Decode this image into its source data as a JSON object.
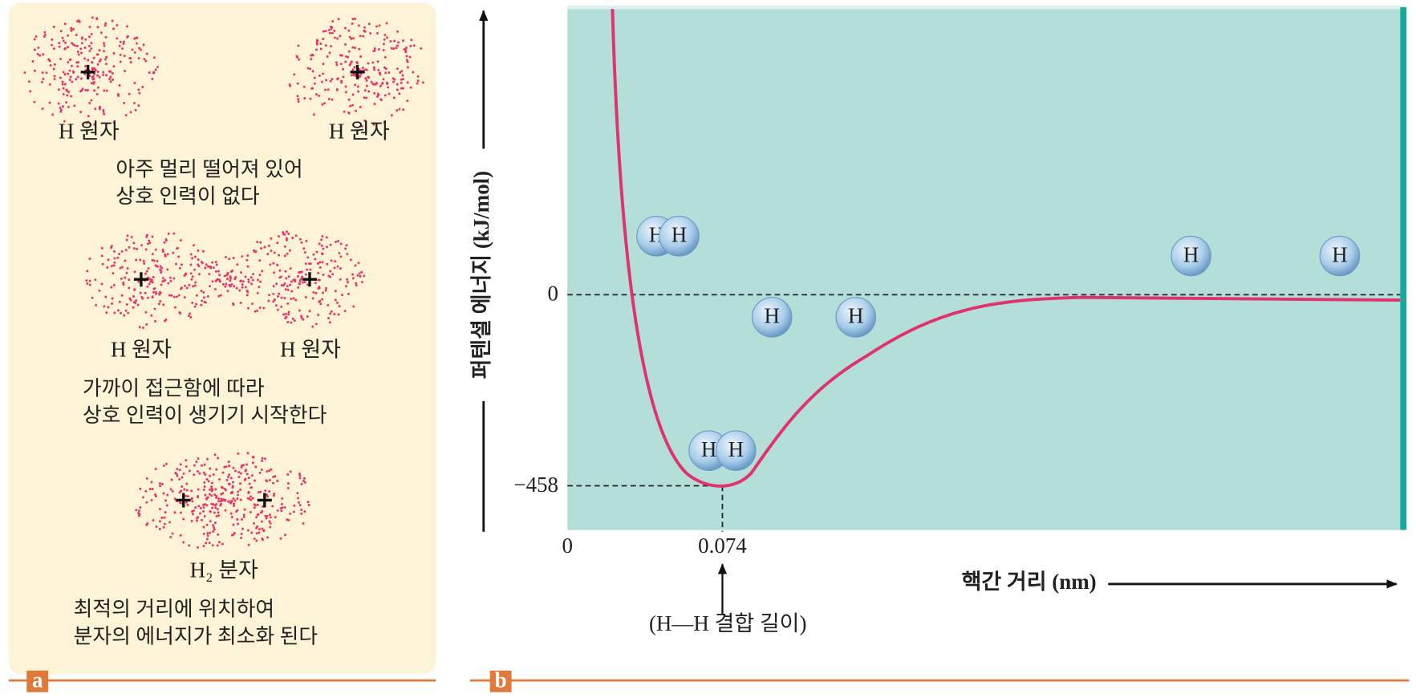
{
  "panel_a": {
    "label": "a",
    "stages": [
      {
        "atom_labels": [
          "H 원자",
          "H 원자"
        ],
        "caption": [
          "아주 멀리 떨어져 있어",
          "상호 인력이 없다"
        ]
      },
      {
        "atom_labels": [
          "H 원자",
          "H 원자"
        ],
        "caption": [
          "가까이 접근함에 따라",
          "상호 인력이 생기기 시작한다"
        ]
      },
      {
        "molecule_label": "H₂ 분자",
        "caption": [
          "최적의 거리에 위치하여",
          "분자의 에너지가 최소화 된다"
        ]
      }
    ]
  },
  "panel_b": {
    "label": "b",
    "y_axis_label": "퍼텐셜 에너지 (kJ/mol)",
    "x_axis_label": "핵간 거리 (nm)",
    "y_ticks": [
      "0",
      "−458"
    ],
    "x_ticks": [
      "0",
      "0.074"
    ],
    "annotation": "(H—H 결합 길이)",
    "atom_symbol": "H"
  }
}
